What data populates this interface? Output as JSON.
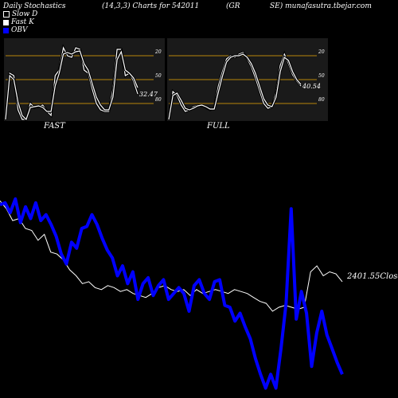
{
  "header": {
    "title": "Daily Stochastics",
    "params": "(14,3,3) Charts for 542011",
    "symbol": "(GR",
    "site": "SE) munafasutra.tbejar.com"
  },
  "legend": [
    {
      "label": "Slow  D",
      "color": "#ffffff"
    },
    {
      "label": "Fast K",
      "color": "#ffffff"
    },
    {
      "label": "OBV",
      "color": "#0000ff"
    }
  ],
  "panels": {
    "fast_label": "FAST",
    "full_label": "FULL"
  },
  "colors": {
    "background": "#000000",
    "panel": "#1a1a1a",
    "gridline": "#b8860b",
    "stoch_line": "#ffffff",
    "obv": "#0000ff",
    "price": "#ffffff"
  },
  "chart_data": [
    {
      "type": "line",
      "name": "FAST",
      "ylim": [
        0,
        100
      ],
      "gridlines": [
        20,
        50,
        80
      ],
      "tick_labels": [
        "80",
        "50",
        "20"
      ],
      "last_value_label": "32.47",
      "series": [
        {
          "name": "Fast K",
          "values": [
            0,
            58,
            55,
            12,
            0,
            0,
            20,
            15,
            16,
            18,
            10,
            5,
            55,
            62,
            90,
            80,
            78,
            90,
            88,
            62,
            58,
            38,
            20,
            12,
            10,
            10,
            38,
            88,
            88,
            55,
            58,
            48,
            32
          ]
        },
        {
          "name": "Slow  D",
          "values": [
            0,
            55,
            50,
            22,
            5,
            0,
            15,
            16,
            17,
            15,
            10,
            10,
            42,
            58,
            82,
            84,
            82,
            85,
            86,
            70,
            62,
            45,
            28,
            18,
            12,
            12,
            28,
            75,
            85,
            62,
            58,
            52,
            40
          ]
        }
      ]
    },
    {
      "type": "line",
      "name": "FULL",
      "ylim": [
        0,
        100
      ],
      "gridlines": [
        20,
        50,
        80
      ],
      "tick_labels": [
        "80",
        "50",
        "20"
      ],
      "last_value_label": "40.54",
      "series": [
        {
          "name": "Fast K",
          "values": [
            0,
            35,
            30,
            18,
            10,
            12,
            16,
            18,
            17,
            15,
            12,
            14,
            42,
            60,
            76,
            80,
            78,
            82,
            84,
            76,
            66,
            52,
            36,
            20,
            14,
            16,
            34,
            68,
            82,
            70,
            56,
            48,
            42
          ]
        },
        {
          "name": "Slow  D",
          "values": [
            0,
            30,
            33,
            24,
            14,
            12,
            14,
            17,
            18,
            16,
            13,
            13,
            34,
            54,
            72,
            78,
            80,
            80,
            82,
            78,
            70,
            58,
            42,
            26,
            18,
            16,
            28,
            60,
            78,
            74,
            60,
            50,
            44
          ]
        }
      ]
    },
    {
      "type": "line",
      "name": "OBV and price",
      "close_label": "2401.55",
      "close_word": "Close",
      "series": [
        {
          "name": "OBV",
          "values": [
            76,
            77,
            72,
            79,
            67,
            75,
            69,
            77,
            68,
            71,
            66,
            60,
            51,
            46,
            57,
            54,
            64,
            65,
            71,
            66,
            59,
            53,
            49,
            40,
            45,
            36,
            42,
            28,
            36,
            39,
            30,
            35,
            38,
            28,
            31,
            34,
            31,
            22,
            35,
            38,
            31,
            28,
            37,
            38,
            25,
            24,
            17,
            21,
            14,
            8,
            -2,
            -10,
            -17,
            -10,
            -17,
            3,
            26,
            74,
            18,
            32,
            21,
            -6,
            11,
            22,
            10,
            3,
            -4,
            -10
          ]
        },
        {
          "name": "Price",
          "values": [
            78,
            74,
            68,
            69,
            64,
            63,
            58,
            61,
            52,
            51,
            48,
            43,
            40,
            36,
            37,
            34,
            33,
            35,
            34,
            32,
            33,
            31,
            30,
            29,
            31,
            34,
            35,
            33,
            32,
            33,
            30,
            33,
            31,
            32,
            33,
            32,
            31,
            33,
            32,
            31,
            29,
            27,
            26,
            22,
            24,
            25,
            24,
            23,
            24,
            42,
            45,
            40,
            42,
            41,
            37
          ]
        }
      ]
    }
  ]
}
